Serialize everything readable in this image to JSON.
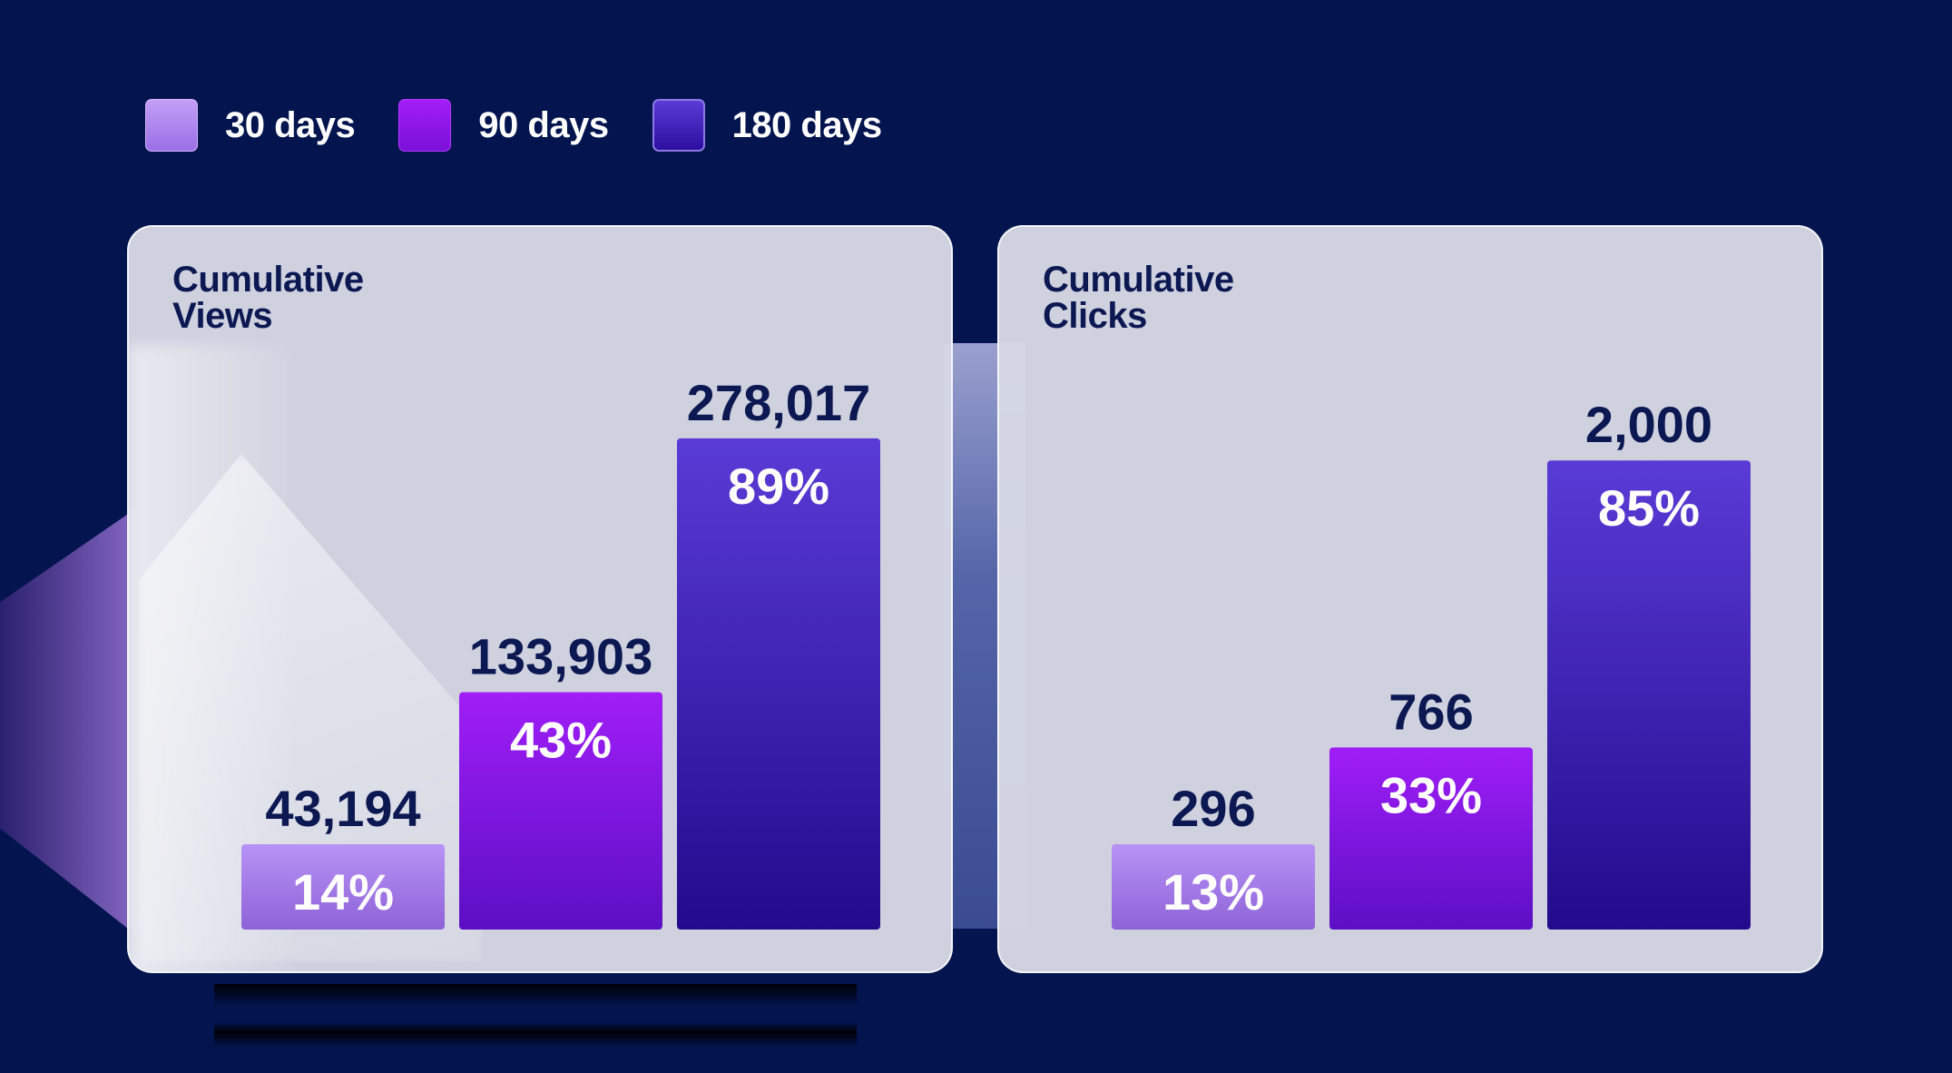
{
  "legend": [
    {
      "label": "30 days",
      "color": "#b18cf2"
    },
    {
      "label": "90 days",
      "color": "#9c1cf2"
    },
    {
      "label": "180 days",
      "color": "#5638d2"
    }
  ],
  "chart_data": [
    {
      "type": "bar",
      "title": "Cumulative Views",
      "categories": [
        "30 days",
        "90 days",
        "180 days"
      ],
      "values": [
        43194,
        133903,
        278017
      ],
      "value_labels": [
        "43,194",
        "133,903",
        "278,017"
      ],
      "percent_labels": [
        "14%",
        "43%",
        "89%"
      ],
      "percents": [
        14,
        43,
        89
      ],
      "grid": false,
      "legend": "top-left"
    },
    {
      "type": "bar",
      "title": "Cumulative Clicks",
      "categories": [
        "30 days",
        "90 days",
        "180 days"
      ],
      "values": [
        296,
        766,
        2000
      ],
      "value_labels": [
        "296",
        "766",
        "2,000"
      ],
      "percent_labels": [
        "13%",
        "33%",
        "85%"
      ],
      "percents": [
        13,
        33,
        85
      ],
      "grid": false,
      "legend": "top-left"
    }
  ]
}
